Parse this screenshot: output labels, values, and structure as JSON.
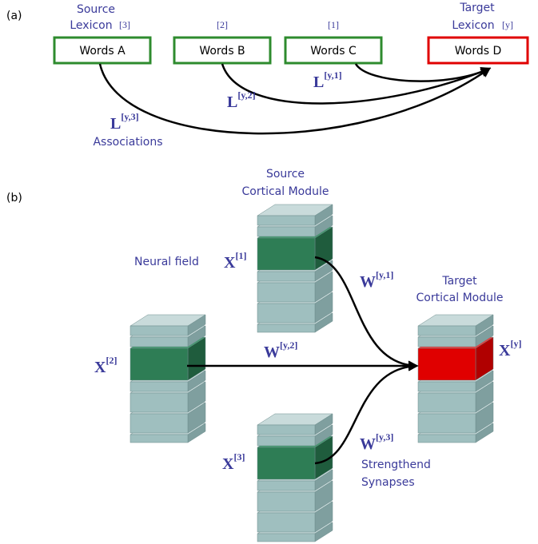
{
  "panel_a": {
    "label": "(a)",
    "nodes": [
      {
        "heading": "Source",
        "subheading": "Lexicon",
        "index": "[3]",
        "label": "Words A"
      },
      {
        "index": "[2]",
        "label": "Words B"
      },
      {
        "index": "[1]",
        "label": "Words C"
      },
      {
        "heading": "Target",
        "subheading": "Lexicon",
        "index": "[y]",
        "label": "Words D"
      }
    ],
    "edges": [
      {
        "base": "L",
        "sup": "[y,1]"
      },
      {
        "base": "L",
        "sup": "[y,2]"
      },
      {
        "base": "L",
        "sup": "[y,3]"
      }
    ],
    "edges_caption": "Associations"
  },
  "panel_b": {
    "label": "(b)",
    "source": {
      "heading": "Source",
      "subheading": "Cortical Module",
      "field_caption": "Neural field"
    },
    "target": {
      "heading": "Target",
      "subheading": "Cortical Module"
    },
    "fields": [
      {
        "base": "X",
        "sup": "[1]"
      },
      {
        "base": "X",
        "sup": "[2]"
      },
      {
        "base": "X",
        "sup": "[3]"
      },
      {
        "base": "X",
        "sup": "[y]"
      }
    ],
    "weights": [
      {
        "base": "W",
        "sup": "[y,1]"
      },
      {
        "base": "W",
        "sup": "[y,2]"
      },
      {
        "base": "W",
        "sup": "[y,3]"
      }
    ],
    "synapse_caption": [
      "Strengthend",
      "Synapses"
    ]
  }
}
